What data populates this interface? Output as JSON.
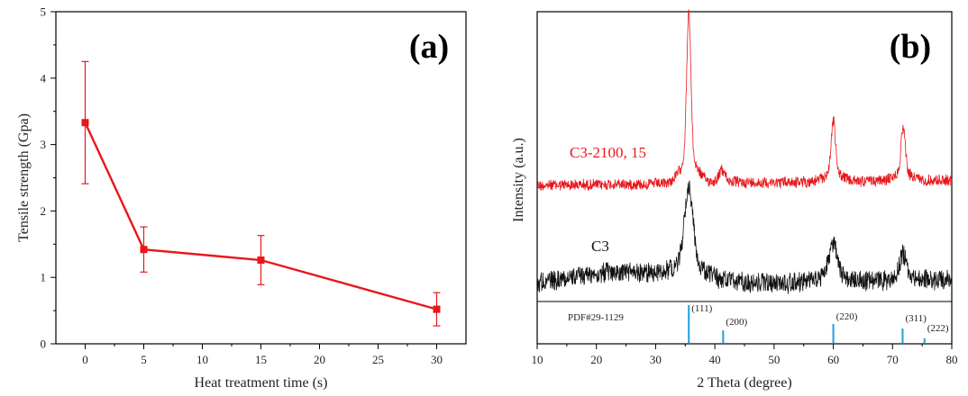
{
  "chart_data": [
    {
      "panel": "(a)",
      "type": "line",
      "xlabel": "Heat treatment time (s)",
      "ylabel": "Tensile strength (Gpa)",
      "xlim": [
        -2.5,
        32.5
      ],
      "ylim": [
        0,
        5
      ],
      "xticks": [
        0,
        5,
        10,
        15,
        20,
        25,
        30
      ],
      "yticks": [
        0,
        1,
        2,
        3,
        4,
        5
      ],
      "color": "#e8171b",
      "series": [
        {
          "x": [
            0,
            5,
            15,
            30
          ],
          "values": [
            3.33,
            1.42,
            1.26,
            0.52
          ],
          "err": [
            0.92,
            0.34,
            0.37,
            0.25
          ]
        }
      ]
    },
    {
      "panel": "(b)",
      "type": "line",
      "xlabel": "2 Theta (degree)",
      "ylabel": "Intensity (a.u.)",
      "xlim": [
        10,
        80
      ],
      "xticks": [
        10,
        20,
        30,
        40,
        50,
        60,
        70,
        80
      ],
      "series": [
        {
          "name": "C3-2100, 15",
          "color": "#e8171b",
          "peaks": [
            {
              "x": 35.6,
              "height": 160
            },
            {
              "x": 41.2,
              "height": 12
            },
            {
              "x": 60.0,
              "height": 58
            },
            {
              "x": 71.8,
              "height": 52
            }
          ]
        },
        {
          "name": "C3",
          "color": "#111111",
          "peaks": [
            {
              "x": 35.6,
              "height": 85
            },
            {
              "x": 60.0,
              "height": 37
            },
            {
              "x": 71.8,
              "height": 25
            }
          ]
        }
      ],
      "reference": {
        "label": "PDF#29-1129",
        "color": "#1e9fe0",
        "lines": [
          {
            "x": 35.6,
            "hkl": "(111)",
            "height": 1.0
          },
          {
            "x": 41.4,
            "hkl": "(200)",
            "height": 0.33
          },
          {
            "x": 60.0,
            "hkl": "(220)",
            "height": 0.5
          },
          {
            "x": 71.7,
            "hkl": "(311)",
            "height": 0.38
          },
          {
            "x": 75.4,
            "hkl": "(222)",
            "height": 0.12
          }
        ]
      }
    }
  ]
}
